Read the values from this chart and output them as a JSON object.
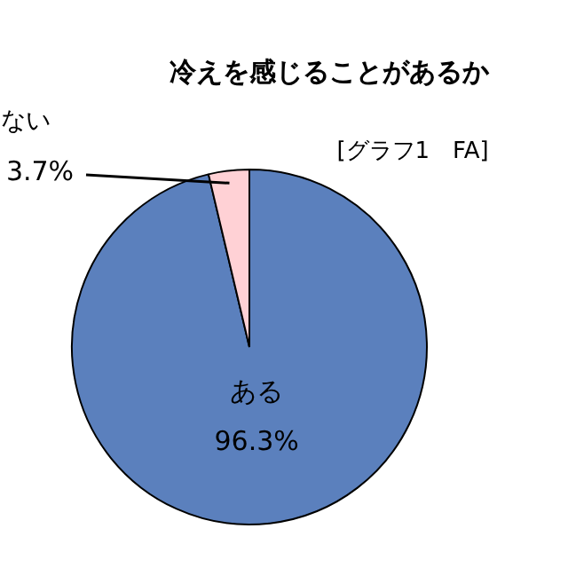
{
  "chart_data": {
    "type": "pie",
    "title": "冷えを感じることがあるか",
    "categories": [
      "ある",
      "ない"
    ],
    "values": [
      96.3,
      3.7
    ],
    "colors": [
      "#5b80bd",
      "#ffd1d5"
    ],
    "value_labels": [
      "96.3%",
      "3.7%"
    ],
    "annotations": [
      "[グラフ1　FA]"
    ]
  }
}
